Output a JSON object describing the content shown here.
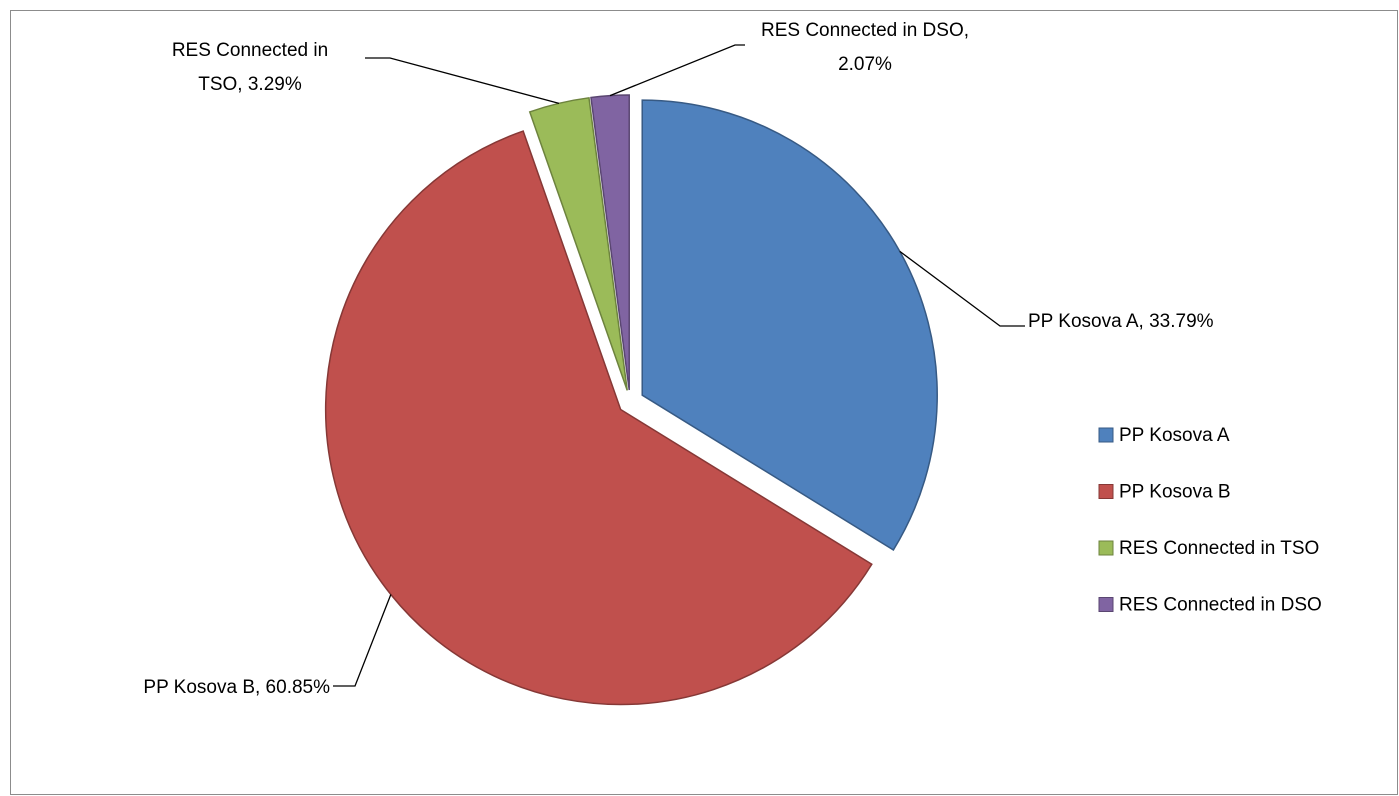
{
  "chart_data": {
    "type": "pie",
    "categories": [
      "PP Kosova A",
      "PP Kosova B",
      "RES Connected in TSO",
      "RES Connected in DSO"
    ],
    "values": [
      33.79,
      60.85,
      3.29,
      2.07
    ],
    "value_labels": [
      "PP Kosova A, 33.79%",
      "PP Kosova B, 60.85%",
      "RES Connected in TSO, 3.29%",
      "RES Connected in DSO, 2.07%"
    ],
    "colors": [
      "#4f81bd",
      "#c0504d",
      "#9bbb59",
      "#8064a2"
    ],
    "legend": "right"
  }
}
